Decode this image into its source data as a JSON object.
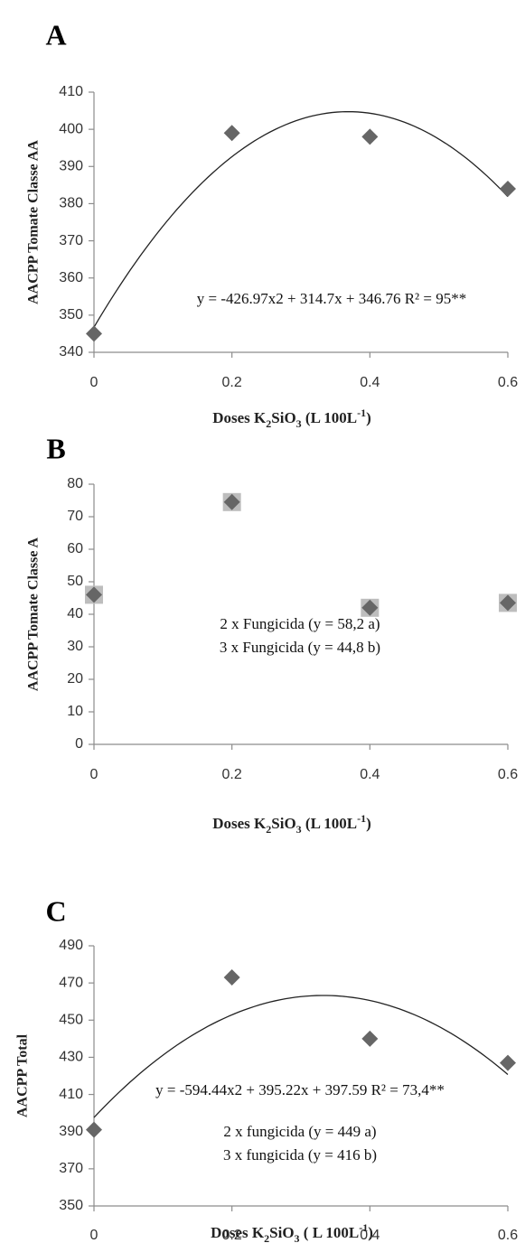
{
  "chart_data": [
    {
      "type": "scatter",
      "panel_label": "A",
      "ylabel": "AACPP Tomate Classe AA",
      "xlabel_parts": [
        "Doses K",
        "2",
        "SiO",
        "3",
        " (L 100L",
        "-1",
        ")"
      ],
      "x": [
        0,
        0.2,
        0.4,
        0.6
      ],
      "y": [
        345,
        399,
        398,
        384
      ],
      "xlim": [
        0,
        0.6
      ],
      "ylim": [
        340,
        410
      ],
      "xticks": [
        "0",
        "0.2",
        "0.4",
        "0.6"
      ],
      "yticks": [
        "340",
        "350",
        "360",
        "370",
        "380",
        "390",
        "400",
        "410"
      ],
      "trendline": {
        "a": -426.97,
        "b": 314.7,
        "c": 346.76
      },
      "annotations": [
        "y = -426.97x2 + 314.7x + 346.76 R² = 95**"
      ],
      "marker_color": "#666666",
      "grid": false
    },
    {
      "type": "scatter",
      "panel_label": "B",
      "ylabel": "AACPP  Tomate Classe A",
      "xlabel_parts": [
        "Doses K",
        "2",
        "SiO",
        "3",
        " (L 100L",
        "-1",
        ")"
      ],
      "x": [
        0,
        0.2,
        0.4,
        0.6
      ],
      "y": [
        46,
        74.5,
        42,
        43.5
      ],
      "xlim": [
        0,
        0.6
      ],
      "ylim": [
        0,
        80
      ],
      "xticks": [
        "0",
        "0.2",
        "0.4",
        "0.6"
      ],
      "yticks": [
        "0",
        "10",
        "20",
        "30",
        "40",
        "50",
        "60",
        "70",
        "80"
      ],
      "annotations": [
        "2 x Fungicida (y = 58,2 a)",
        "3 x Fungicida (y = 44,8 b)"
      ],
      "marker_color": "#666666",
      "grid": false
    },
    {
      "type": "scatter",
      "panel_label": "C",
      "ylabel": "AACPP Total",
      "xlabel_parts": [
        "Doses K",
        "2",
        "SiO",
        "3",
        " ( L 100L",
        "-1",
        ")"
      ],
      "x": [
        0,
        0.2,
        0.4,
        0.6
      ],
      "y": [
        391,
        473,
        440,
        427
      ],
      "xlim": [
        0,
        0.6
      ],
      "ylim": [
        350,
        490
      ],
      "xticks": [
        "0",
        "0.2",
        "0.4",
        "0.6"
      ],
      "yticks": [
        "350",
        "370",
        "390",
        "410",
        "430",
        "450",
        "470",
        "490"
      ],
      "trendline": {
        "a": -594.44,
        "b": 395.22,
        "c": 397.59
      },
      "annotations": [
        "y = -594.44x2 + 395.22x + 397.59 R² = 73,4**",
        "2 x fungicida (y = 449 a)",
        "3 x fungicida (y = 416 b)"
      ],
      "marker_color": "#666666",
      "grid": false
    }
  ]
}
